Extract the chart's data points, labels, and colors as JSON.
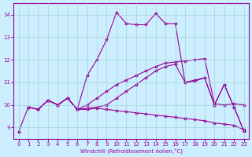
{
  "xlabel": "Windchill (Refroidissement éolien,°C)",
  "background_color": "#cceeff",
  "line_color": "#990099",
  "xlim": [
    -0.5,
    23.5
  ],
  "ylim": [
    8.5,
    14.5
  ],
  "xticks": [
    0,
    1,
    2,
    3,
    4,
    5,
    6,
    7,
    8,
    9,
    10,
    11,
    12,
    13,
    14,
    15,
    16,
    17,
    18,
    19,
    20,
    21,
    22,
    23
  ],
  "yticks": [
    9,
    10,
    11,
    12,
    13,
    14
  ],
  "line1_x": [
    0,
    1,
    2,
    3,
    4,
    5,
    6,
    7,
    8,
    9,
    10,
    11,
    12,
    13,
    14,
    15,
    16,
    17,
    18,
    19,
    20,
    21,
    22,
    23
  ],
  "line1_y": [
    8.8,
    9.9,
    9.8,
    10.2,
    10.0,
    10.3,
    9.8,
    11.3,
    12.0,
    12.9,
    14.1,
    13.6,
    13.55,
    13.55,
    14.05,
    13.6,
    13.6,
    11.0,
    11.05,
    11.2,
    10.0,
    10.9,
    9.9,
    8.85
  ],
  "line2_x": [
    1,
    2,
    3,
    4,
    5,
    6,
    7,
    8,
    9,
    10,
    11,
    12,
    13,
    14,
    15,
    16,
    17,
    18,
    19,
    20,
    21,
    22,
    23
  ],
  "line2_y": [
    9.9,
    9.8,
    10.2,
    10.0,
    10.3,
    9.8,
    9.85,
    9.9,
    10.0,
    10.3,
    10.6,
    10.9,
    11.2,
    11.5,
    11.7,
    11.8,
    11.0,
    11.1,
    11.2,
    10.0,
    10.9,
    9.9,
    8.85
  ],
  "line3_x": [
    1,
    2,
    3,
    4,
    5,
    6,
    7,
    8,
    9,
    10,
    11,
    12,
    13,
    14,
    15,
    16,
    17,
    18,
    19,
    20,
    21,
    22,
    23
  ],
  "line3_y": [
    9.9,
    9.8,
    10.2,
    10.0,
    10.3,
    9.8,
    9.8,
    9.85,
    9.8,
    9.75,
    9.7,
    9.65,
    9.6,
    9.55,
    9.5,
    9.45,
    9.4,
    9.35,
    9.3,
    9.2,
    9.15,
    9.1,
    8.9
  ],
  "line4_x": [
    1,
    2,
    3,
    4,
    5,
    6,
    7,
    8,
    9,
    10,
    11,
    12,
    13,
    14,
    15,
    16,
    17,
    18,
    19,
    20,
    21,
    22,
    23
  ],
  "line4_y": [
    9.9,
    9.8,
    10.2,
    10.0,
    10.3,
    9.8,
    10.0,
    10.3,
    10.6,
    10.9,
    11.1,
    11.3,
    11.5,
    11.7,
    11.85,
    11.9,
    11.95,
    12.0,
    12.05,
    10.05,
    10.0,
    10.05,
    10.0
  ]
}
